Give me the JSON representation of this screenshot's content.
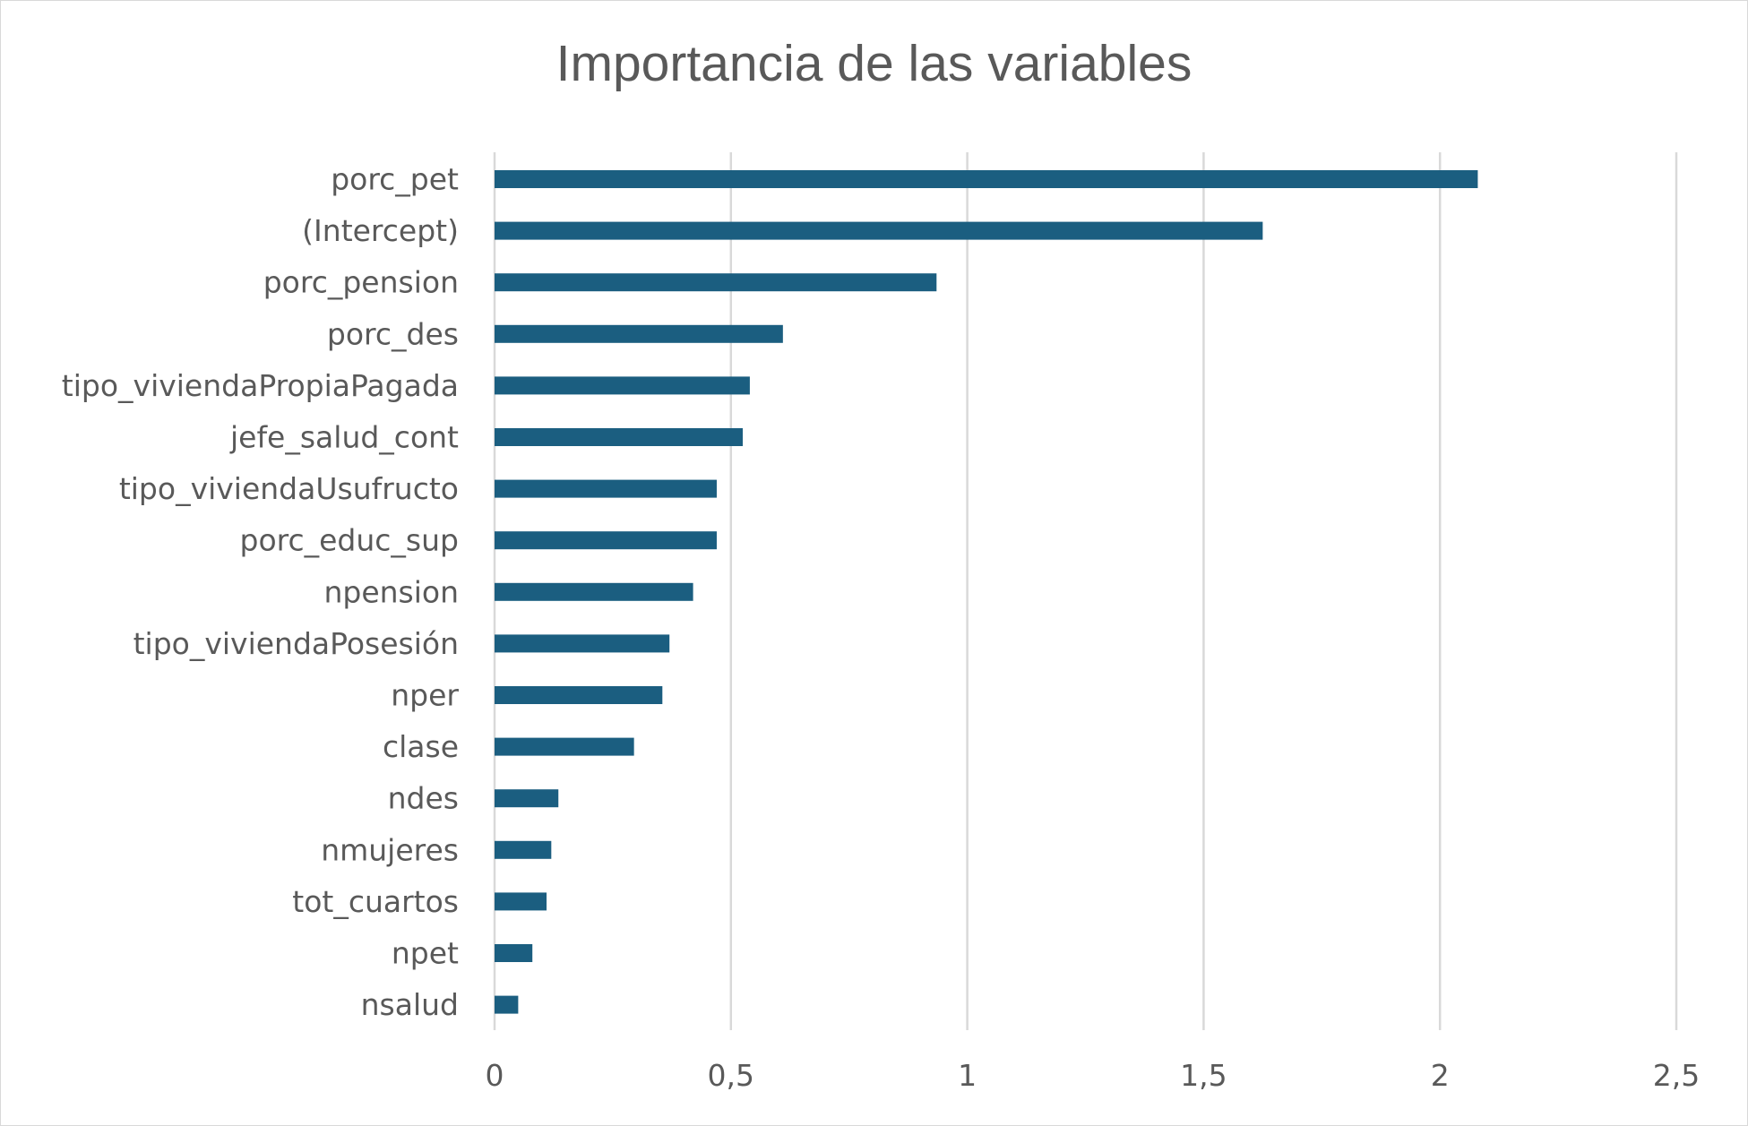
{
  "chart_data": {
    "type": "bar",
    "orientation": "horizontal",
    "title": "Importancia de las variables",
    "xlabel": "",
    "ylabel": "",
    "categories": [
      "porc_pet",
      "(Intercept)",
      "porc_pension",
      "porc_des",
      "tipo_viviendaPropiaPagada",
      "jefe_salud_cont",
      "tipo_viviendaUsufructo",
      "porc_educ_sup",
      "npension",
      "tipo_viviendaPosesión",
      "nper",
      "clase",
      "ndes",
      "nmujeres",
      "tot_cuartos",
      "npet",
      "nsalud"
    ],
    "values": [
      2.08,
      1.625,
      0.935,
      0.61,
      0.54,
      0.525,
      0.47,
      0.47,
      0.42,
      0.37,
      0.355,
      0.295,
      0.135,
      0.12,
      0.11,
      0.08,
      0.05
    ],
    "xlim": [
      0,
      2.5
    ],
    "ticks": [
      0,
      0.5,
      1,
      1.5,
      2,
      2.5
    ],
    "tick_labels": [
      "0",
      "0,5",
      "1",
      "1,5",
      "2",
      "2,5"
    ],
    "grid": true,
    "legend": "none",
    "bar_color": "#1b5e80",
    "grid_color": "#d9d9d9"
  }
}
